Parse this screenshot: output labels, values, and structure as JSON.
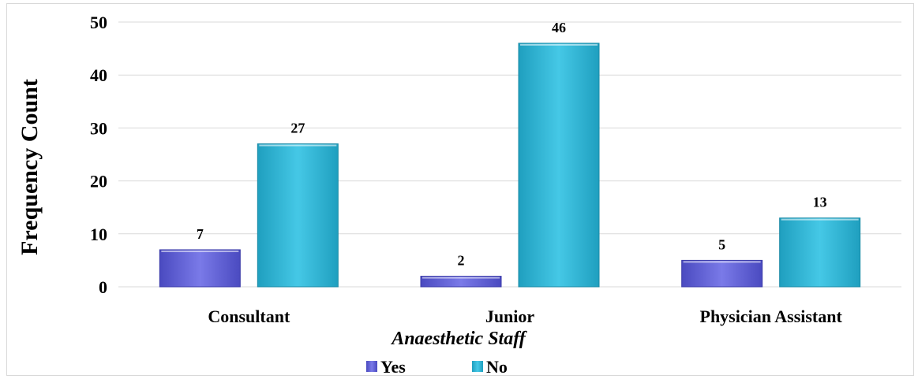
{
  "chart_data": {
    "type": "bar",
    "categories": [
      "Consultant",
      "Junior",
      "Physician Assistant"
    ],
    "series": [
      {
        "name": "Yes",
        "values": [
          7,
          2,
          5
        ],
        "color": "#5b5bd6"
      },
      {
        "name": "No",
        "values": [
          27,
          46,
          13
        ],
        "color": "#2fb5d3"
      }
    ],
    "xlabel": "Anaesthetic Staff",
    "ylabel": "Frequency Count",
    "ylim": [
      0,
      50
    ],
    "yticks": [
      0,
      10,
      20,
      30,
      40,
      50
    ],
    "grid": true,
    "legend": "bottom-center",
    "data_labels": true
  }
}
